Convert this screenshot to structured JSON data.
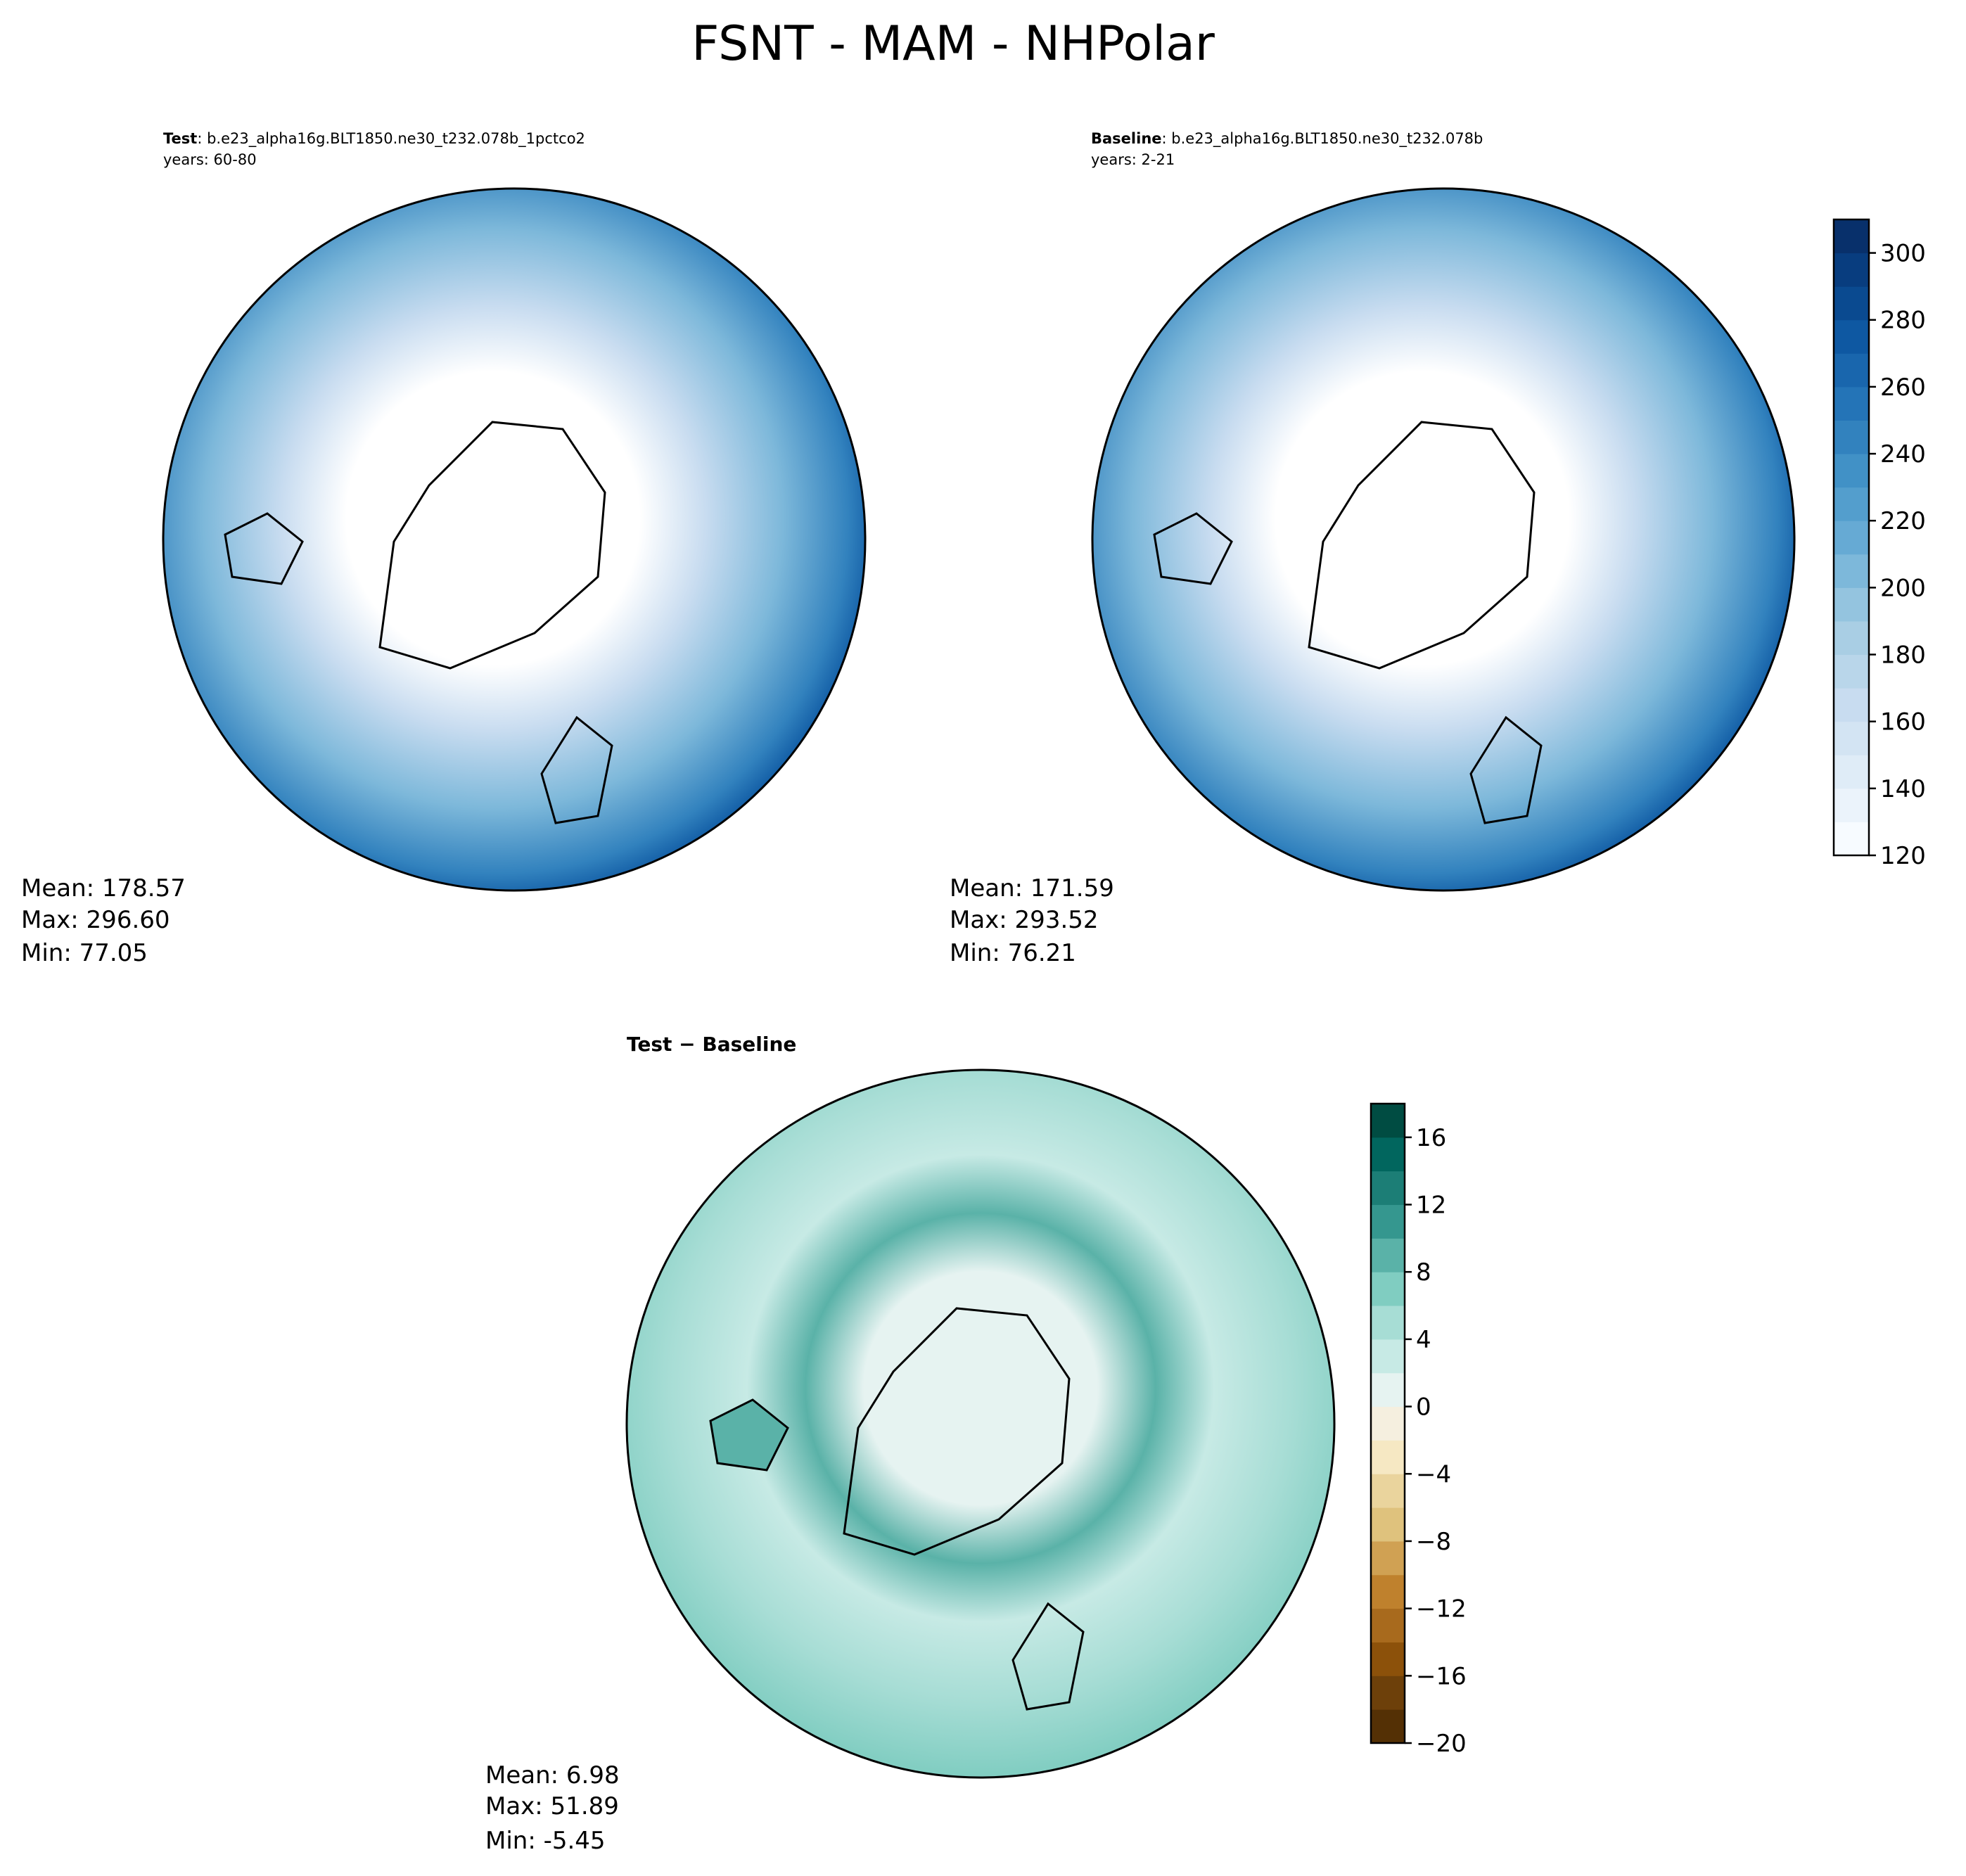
{
  "title": "FSNT - MAM - NHPolar",
  "panels": [
    {
      "name": "Test",
      "case": ": b.e23_alpha16g.BLT1850.ne30_t232.078b_1pctco2",
      "years": "years: 60-80",
      "stats": [
        "Mean: 178.57",
        "Max: 296.60",
        "Min: 77.05"
      ]
    },
    {
      "name": "Baseline",
      "case": ": b.e23_alpha16g.BLT1850.ne30_t232.078b",
      "years": "years: 2-21",
      "stats": [
        "Mean: 171.59",
        "Max: 293.52",
        "Min: 76.21"
      ]
    },
    {
      "name": "Test − Baseline",
      "stats": [
        "Mean:  6.98",
        "Max: 51.89",
        "Min: -5.45"
      ]
    }
  ],
  "colorbars": [
    {
      "lim": [
        120,
        310
      ],
      "ticks": [
        120,
        140,
        160,
        180,
        200,
        220,
        240,
        260,
        280,
        300
      ],
      "colors": [
        "#f7fbff",
        "#ebf3fb",
        "#dfecf7",
        "#d3e4f3",
        "#c8dcf0",
        "#b9d6ea",
        "#a9cee4",
        "#94c4df",
        "#7db8da",
        "#66aad4",
        "#539ecd",
        "#4191c6",
        "#3282be",
        "#2474b7",
        "#1966ad",
        "#0e58a2",
        "#0a4a90",
        "#083d7f",
        "#08306b"
      ]
    },
    {
      "lim": [
        -20,
        18
      ],
      "ticks": [
        {
          "value": -20,
          "label": "−20"
        },
        {
          "value": -16,
          "label": "−16"
        },
        {
          "value": -12,
          "label": "−12"
        },
        {
          "value": -8,
          "label": "−8"
        },
        {
          "value": -4,
          "label": "−4"
        },
        0,
        4,
        8,
        12,
        16
      ],
      "colors": [
        "#543005",
        "#6d400a",
        "#8c510a",
        "#a86a1d",
        "#bf812d",
        "#d0a153",
        "#dfc27d",
        "#ead49d",
        "#f6e8c3",
        "#f5efdf",
        "#e6f3f1",
        "#c7eae5",
        "#a7ddd5",
        "#80cdc1",
        "#5ab2a8",
        "#35978f",
        "#1c7e76",
        "#01665e",
        "#004c42"
      ]
    }
  ]
}
